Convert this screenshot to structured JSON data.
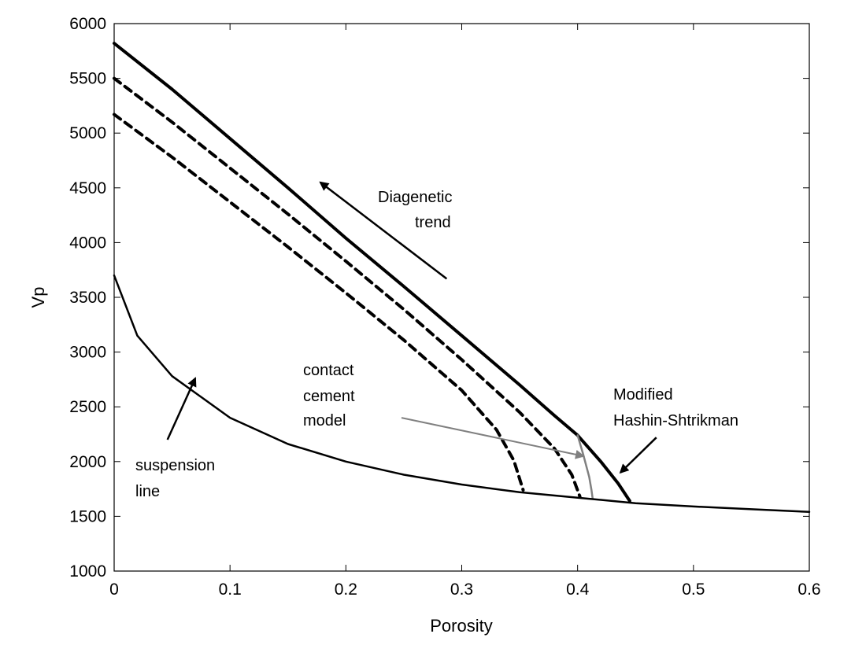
{
  "chart_data": {
    "type": "line",
    "xlabel": "Porosity",
    "ylabel": "Vp",
    "xlim": [
      0,
      0.6
    ],
    "ylim": [
      1000,
      6000
    ],
    "xticks": [
      0,
      0.1,
      0.2,
      0.3,
      0.4,
      0.5,
      0.6
    ],
    "xtick_labels": [
      "0",
      "0.1",
      "0.2",
      "0.3",
      "0.4",
      "0.5",
      "0.6"
    ],
    "yticks": [
      1000,
      1500,
      2000,
      2500,
      3000,
      3500,
      4000,
      4500,
      5000,
      5500,
      6000
    ],
    "ytick_labels": [
      "1000",
      "1500",
      "2000",
      "2500",
      "3000",
      "3500",
      "4000",
      "4500",
      "5000",
      "5500",
      "6000"
    ],
    "grid": false,
    "series": [
      {
        "style": "solid-thick",
        "color": "#000000",
        "x": [
          0,
          0.05,
          0.1,
          0.15,
          0.2,
          0.25,
          0.3,
          0.35,
          0.38,
          0.4,
          0.42,
          0.435,
          0.445
        ],
        "y": [
          5820,
          5400,
          4950,
          4500,
          4040,
          3600,
          3150,
          2700,
          2420,
          2240,
          2000,
          1800,
          1640
        ]
      },
      {
        "style": "dashed",
        "color": "#000000",
        "x": [
          0,
          0.05,
          0.1,
          0.15,
          0.2,
          0.25,
          0.3,
          0.35,
          0.38,
          0.395,
          0.402
        ],
        "y": [
          5500,
          5100,
          4680,
          4260,
          3830,
          3390,
          2930,
          2450,
          2120,
          1880,
          1680
        ]
      },
      {
        "style": "dashed",
        "color": "#000000",
        "x": [
          0,
          0.05,
          0.1,
          0.15,
          0.2,
          0.25,
          0.3,
          0.33,
          0.345,
          0.353
        ],
        "y": [
          5170,
          4780,
          4370,
          3960,
          3540,
          3110,
          2650,
          2290,
          2010,
          1740
        ]
      },
      {
        "style": "solid-gray",
        "color": "#808080",
        "x": [
          0.4,
          0.405,
          0.41,
          0.412,
          0.413
        ],
        "y": [
          2240,
          2060,
          1860,
          1740,
          1660
        ]
      },
      {
        "style": "solid",
        "color": "#000000",
        "x": [
          0,
          0.02,
          0.05,
          0.1,
          0.15,
          0.2,
          0.25,
          0.3,
          0.35,
          0.4,
          0.45,
          0.5,
          0.55,
          0.6
        ],
        "y": [
          3700,
          3150,
          2780,
          2400,
          2160,
          2000,
          1880,
          1790,
          1720,
          1670,
          1620,
          1590,
          1565,
          1540
        ]
      }
    ],
    "annotations": [
      {
        "text_lines": [
          "Diagenetic",
          "trend"
        ]
      },
      {
        "text_lines": [
          "contact",
          "cement",
          "model"
        ]
      },
      {
        "text_lines": [
          "Modified",
          "Hashin-Shtrikman"
        ]
      },
      {
        "text_lines": [
          "suspension",
          "line"
        ]
      }
    ],
    "arrows": [
      {
        "name": "diagenetic-trend-arrow",
        "from": [
          0.287,
          3670
        ],
        "to": [
          0.178,
          4550
        ],
        "color": "#000000"
      },
      {
        "name": "contact-cement-arrow",
        "from": [
          0.248,
          2400
        ],
        "to": [
          0.405,
          2050
        ],
        "color": "#808080"
      },
      {
        "name": "modified-hs-arrow",
        "from": [
          0.468,
          2220
        ],
        "to": [
          0.437,
          1900
        ],
        "color": "#000000"
      },
      {
        "name": "suspension-line-arrow",
        "from": [
          0.046,
          2200
        ],
        "to": [
          0.07,
          2760
        ],
        "color": "#000000"
      }
    ]
  }
}
